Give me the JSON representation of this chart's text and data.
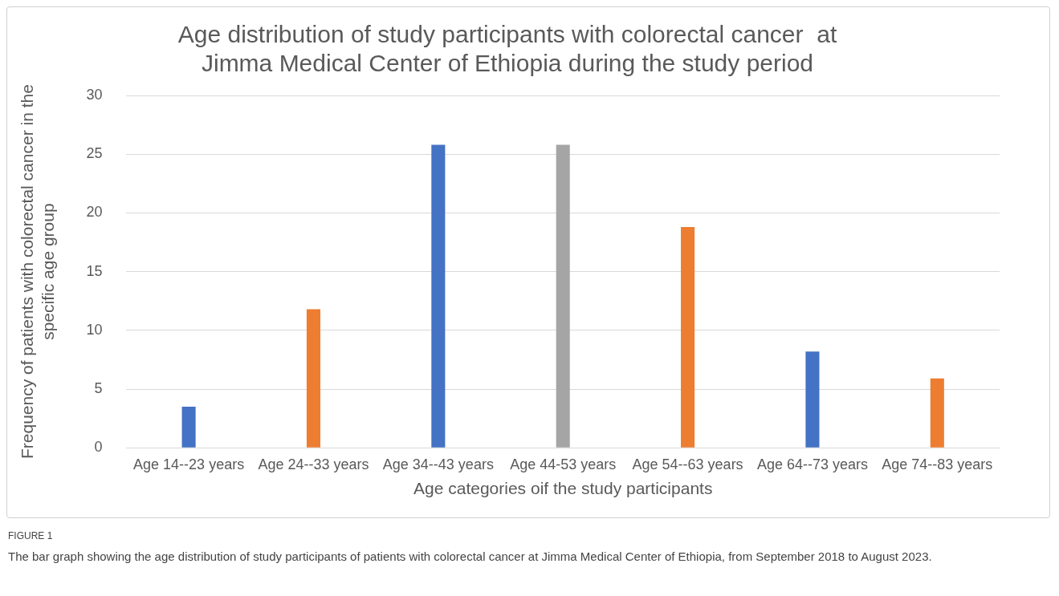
{
  "chart_data": {
    "type": "bar",
    "title": "Age distribution of study participants with colorectal cancer  at Jimma Medical Center of Ethiopia during the study period",
    "xlabel": "Age categories oif the study participants",
    "ylabel": "Frequency of patients with colorectal cancer in the specific age group",
    "categories": [
      "Age 14--23 years",
      "Age 24--33 years",
      "Age 34--43 years",
      "Age 44-53 years",
      "Age 54--63 years",
      "Age 64--73 years",
      "Age 74--83 years"
    ],
    "values": [
      3.5,
      11.8,
      25.8,
      25.8,
      18.8,
      8.2,
      5.9
    ],
    "colors": [
      "#4472c4",
      "#ed7d31",
      "#4472c4",
      "#a5a5a5",
      "#ed7d31",
      "#4472c4",
      "#ed7d31"
    ],
    "ylim": [
      0,
      30
    ],
    "yticks": [
      0,
      5,
      10,
      15,
      20,
      25,
      30
    ],
    "grid": "y",
    "annotations": [
      "FIGURE 1",
      "The bar graph showing the age distribution of study participants of patients with colorectal cancer at Jimma Medical Center of Ethiopia, from September 2018 to August 2023."
    ]
  }
}
